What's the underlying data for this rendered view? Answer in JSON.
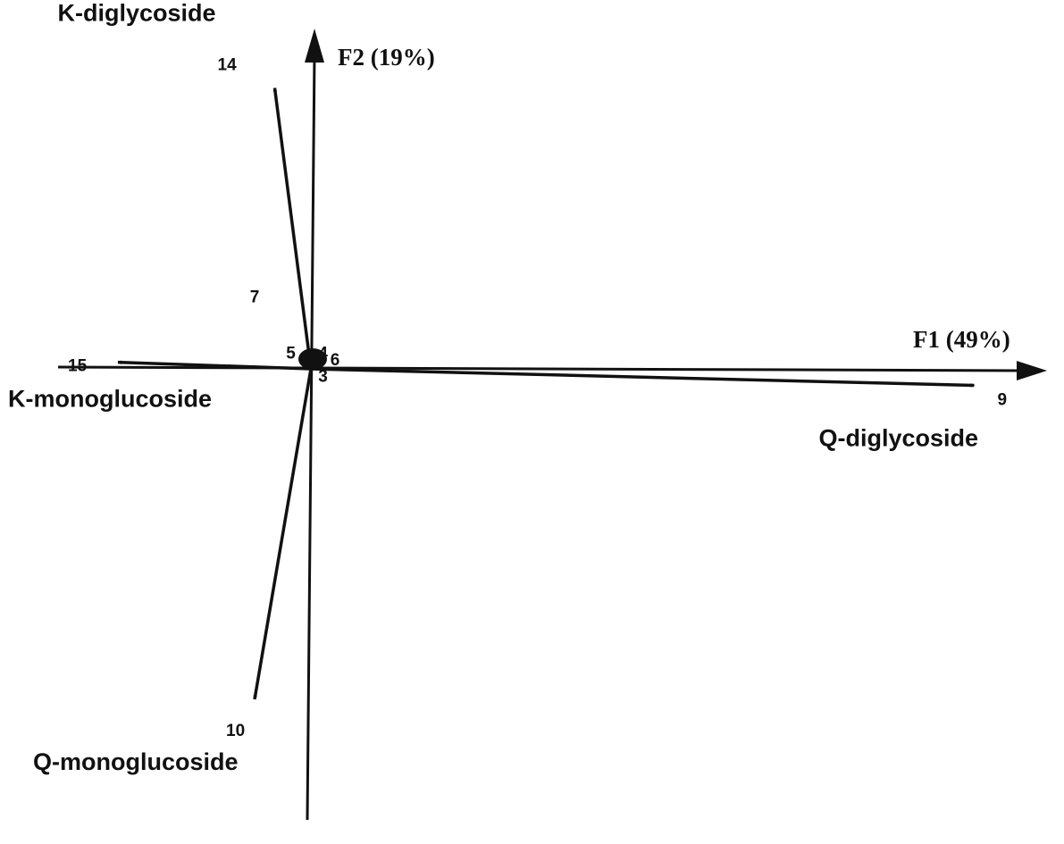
{
  "chart_data": {
    "type": "biplot",
    "axes": {
      "x": {
        "label": "F1 (49%)"
      },
      "y": {
        "label": "F2 (19%)"
      }
    },
    "vectors": [
      {
        "id": "14",
        "name": "K-diglycoside",
        "x": -0.09,
        "y": 0.85
      },
      {
        "id": "15",
        "name": "K-monoglucoside",
        "x": -0.48,
        "y": 0.02
      },
      {
        "id": "9",
        "name": "Q-diglycoside",
        "x": 1.65,
        "y": -0.05
      },
      {
        "id": "10",
        "name": "Q-monoglucoside",
        "x": -0.14,
        "y": -1.0
      }
    ],
    "points": [
      {
        "label": "7",
        "x": -0.14,
        "y": 0.22
      },
      {
        "label": "5",
        "x": -0.05,
        "y": 0.05
      },
      {
        "label": "4",
        "x": 0.03,
        "y": 0.05
      },
      {
        "label": "6",
        "x": 0.06,
        "y": 0.03
      },
      {
        "label": "3",
        "x": 0.03,
        "y": -0.02
      }
    ],
    "grid": false,
    "legend": "none"
  }
}
